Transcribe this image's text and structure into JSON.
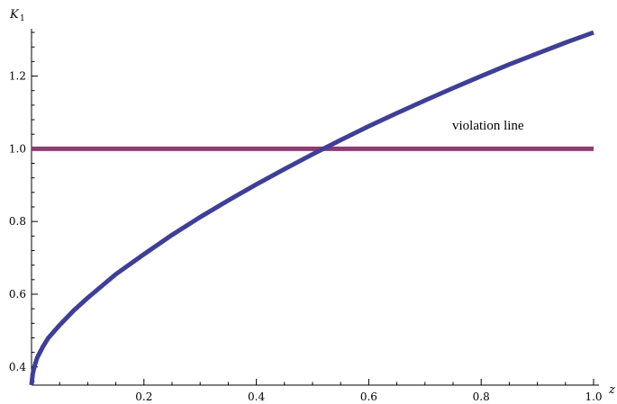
{
  "chart_data": {
    "type": "line",
    "title": "",
    "xlabel": "z",
    "ylabel": "K",
    "ylabel_sub": "1",
    "xlim": [
      0,
      1.0
    ],
    "ylim": [
      0.35,
      1.33
    ],
    "x_ticks": [
      "0.2",
      "0.4",
      "0.6",
      "0.8",
      "1.0"
    ],
    "y_ticks": [
      "0.4",
      "0.6",
      "0.8",
      "1.0",
      "1.2"
    ],
    "grid": false,
    "annotation": "violation line",
    "colors": {
      "curve": "#3f3f96",
      "violation": "#8e3a73"
    },
    "series": [
      {
        "values_x": [
          0.0,
          0.002,
          0.005,
          0.01,
          0.02,
          0.03,
          0.05,
          0.075,
          0.1,
          0.15,
          0.2,
          0.25,
          0.3,
          0.35,
          0.4,
          0.45,
          0.5,
          0.55,
          0.6,
          0.65,
          0.7,
          0.75,
          0.8,
          0.85,
          0.9,
          0.95,
          1.0
        ],
        "values_y": [
          0.35,
          0.38,
          0.4,
          0.425,
          0.455,
          0.48,
          0.515,
          0.555,
          0.59,
          0.655,
          0.71,
          0.763,
          0.812,
          0.858,
          0.902,
          0.944,
          0.985,
          1.024,
          1.062,
          1.098,
          1.133,
          1.167,
          1.2,
          1.232,
          1.262,
          1.292,
          1.32
        ]
      },
      {
        "values_x": [
          0.0,
          1.0
        ],
        "values_y": [
          1.0,
          1.0
        ]
      }
    ]
  }
}
